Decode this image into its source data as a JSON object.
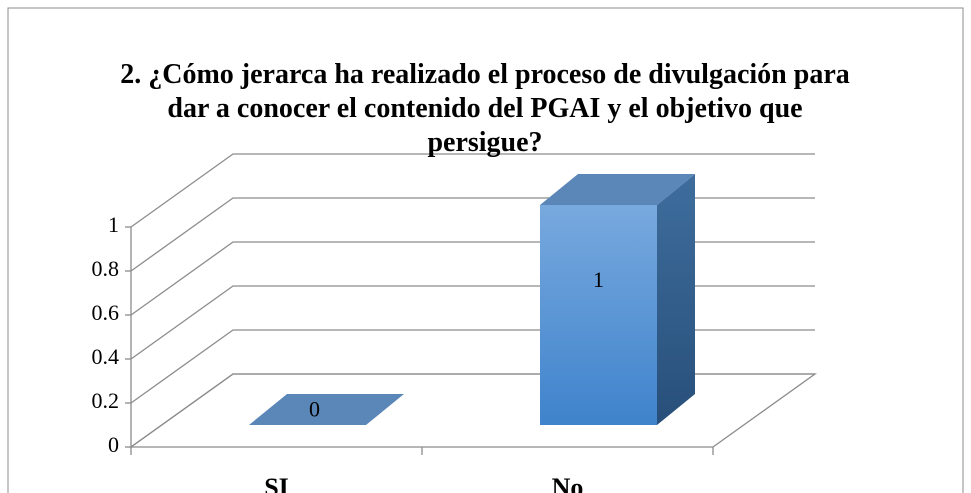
{
  "chart_data": {
    "type": "bar",
    "title": "2. ¿Cómo jerarca ha realizado el proceso de divulgación para dar a conocer el contenido del PGAI y el objetivo que persigue?",
    "categories": [
      "SI",
      "No"
    ],
    "values": [
      0,
      1
    ],
    "color": "#4a8bd4",
    "ylim": [
      0,
      1
    ],
    "yticks": [
      0,
      0.2,
      0.4,
      0.6,
      0.8,
      1
    ],
    "grid": true
  }
}
